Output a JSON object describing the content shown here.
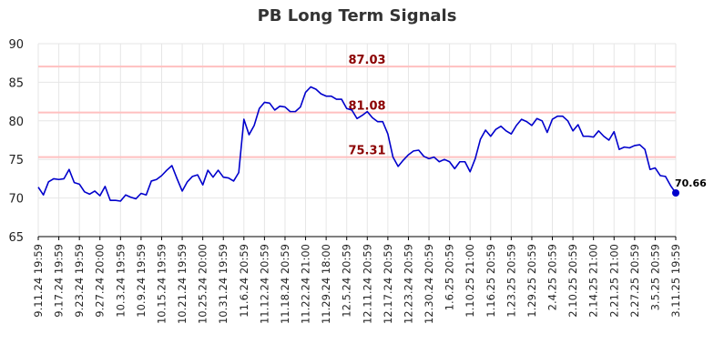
{
  "chart_data": {
    "type": "line",
    "title": "PB Long Term Signals",
    "ylim": [
      65,
      90
    ],
    "yticks": [
      65,
      70,
      75,
      80,
      85,
      90
    ],
    "grid": true,
    "x_tick_labels": [
      "9.11.24 19:59",
      "9.17.24 19:59",
      "9.23.24 19:59",
      "9.27.24 20:00",
      "10.3.24 19:59",
      "10.9.24 19:59",
      "10.15.24 19:59",
      "10.21.24 19:59",
      "10.25.24 20:00",
      "10.31.24 19:59",
      "11.6.24 20:59",
      "11.12.24 20:59",
      "11.18.24 20:59",
      "11.22.24 21:00",
      "11.29.24 18:00",
      "12.5.24 20:59",
      "12.11.24 20:59",
      "12.17.24 20:59",
      "12.23.24 20:59",
      "12.30.24 20:59",
      "1.6.25 20:59",
      "1.10.25 21:00",
      "1.16.25 20:59",
      "1.23.25 20:59",
      "1.29.25 20:59",
      "2.4.25 20:59",
      "2.10.25 20:59",
      "2.14.25 21:00",
      "2.21.25 21:00",
      "2.27.25 20:59",
      "3.5.25 20:59",
      "3.11.25 19:59"
    ],
    "series": [
      {
        "color": "#0000cc",
        "values": [
          71.4,
          70.4,
          72.1,
          72.5,
          72.4,
          72.5,
          73.7,
          72.0,
          71.8,
          70.8,
          70.5,
          70.9,
          70.3,
          71.5,
          69.7,
          69.7,
          69.6,
          70.4,
          70.1,
          69.9,
          70.6,
          70.4,
          72.2,
          72.4,
          72.9,
          73.6,
          74.2,
          72.5,
          70.9,
          72.1,
          72.8,
          73.0,
          71.7,
          73.6,
          72.7,
          73.6,
          72.7,
          72.6,
          72.2,
          73.3,
          80.2,
          78.2,
          79.4,
          81.6,
          82.4,
          82.3,
          81.4,
          81.9,
          81.8,
          81.2,
          81.2,
          81.8,
          83.7,
          84.4,
          84.1,
          83.5,
          83.2,
          83.2,
          82.8,
          82.8,
          81.6,
          81.4,
          80.3,
          80.7,
          81.2,
          80.4,
          79.9,
          79.9,
          78.3,
          75.3,
          74.1,
          74.9,
          75.6,
          76.1,
          76.2,
          75.4,
          75.1,
          75.3,
          74.7,
          75.0,
          74.7,
          73.8,
          74.7,
          74.7,
          73.4,
          75.1,
          77.6,
          78.8,
          78.0,
          78.9,
          79.3,
          78.7,
          78.3,
          79.4,
          80.2,
          79.9,
          79.4,
          80.3,
          80.0,
          78.5,
          80.2,
          80.6,
          80.6,
          80.0,
          78.7,
          79.5,
          78.0,
          78.0,
          77.9,
          78.7,
          78.0,
          77.5,
          78.6,
          76.3,
          76.6,
          76.5,
          76.8,
          76.9,
          76.3,
          73.7,
          73.9,
          72.9,
          72.8,
          71.6,
          70.66
        ]
      }
    ],
    "levels": [
      {
        "value": 87.03,
        "label": "87.03"
      },
      {
        "value": 81.08,
        "label": "81.08"
      },
      {
        "value": 75.31,
        "label": "75.31"
      }
    ],
    "last_value_label": "70.66",
    "colors": {
      "line": "#0000cc",
      "level": "#ffc0c0",
      "level_text": "#8b0000",
      "grid": "#e6e6e6"
    }
  }
}
